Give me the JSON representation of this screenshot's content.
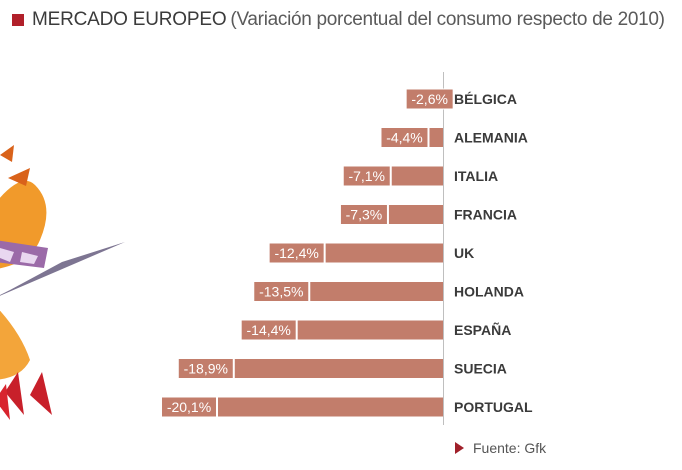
{
  "header": {
    "title": "MERCADO EUROPEO",
    "subtitle": "(Variación porcentual del consumo respecto de 2010)",
    "accent_color": "#b1202a"
  },
  "source": {
    "label": "Fuente: Gfk",
    "arrow_color": "#a0202a"
  },
  "chart_data": {
    "type": "bar",
    "orientation": "horizontal",
    "categories": [
      "BÉLGICA",
      "ALEMANIA",
      "ITALIA",
      "FRANCIA",
      "UK",
      "HOLANDA",
      "ESPAÑA",
      "SUECIA",
      "PORTUGAL"
    ],
    "values": [
      -2.6,
      -4.4,
      -7.1,
      -7.3,
      -12.4,
      -13.5,
      -14.4,
      -18.9,
      -20.1
    ],
    "value_labels": [
      "-2,6%",
      "-4,4%",
      "-7,1%",
      "-7,3%",
      "-12,4%",
      "-13,5%",
      "-14,4%",
      "-18,9%",
      "-20,1%"
    ],
    "xlim": [
      -20.1,
      0
    ],
    "bar_color": "#c27d6b",
    "axis_color": "#bfbfbf",
    "grid": false
  }
}
